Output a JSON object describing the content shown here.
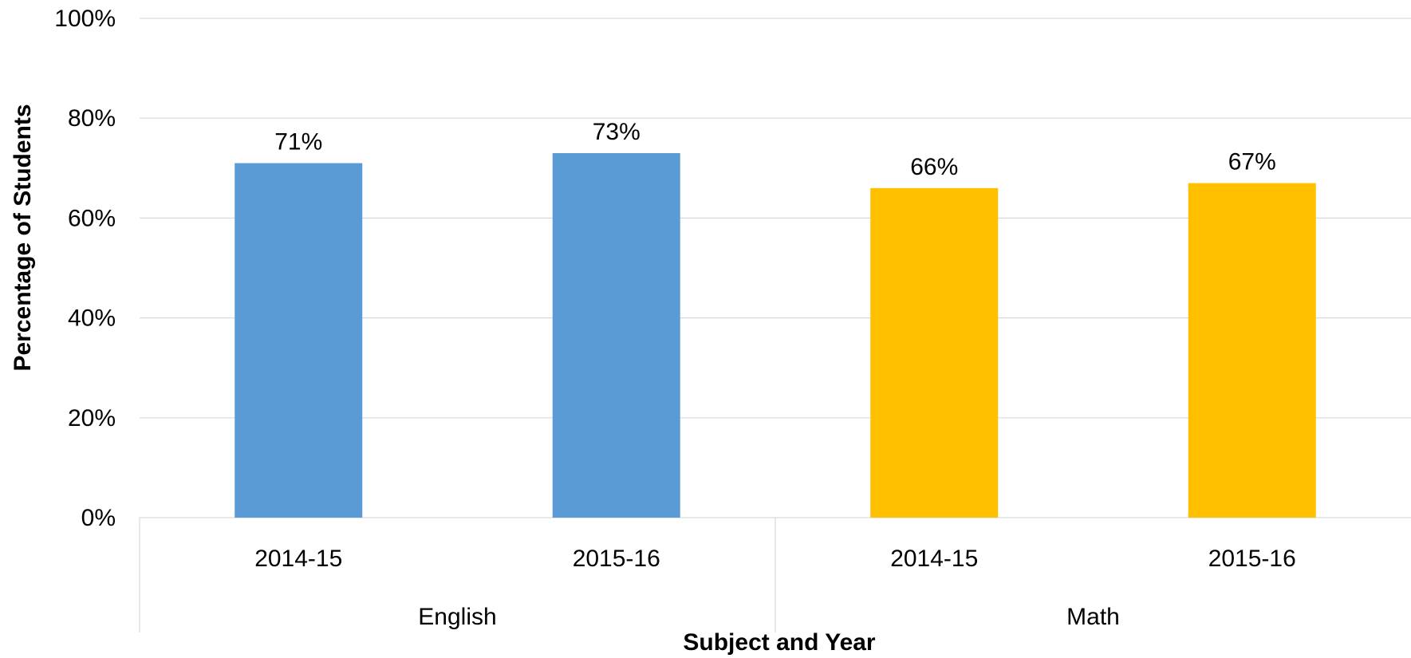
{
  "chart_data": {
    "type": "bar",
    "xlabel": "Subject and Year",
    "ylabel": "Percentage of Students",
    "ylim": [
      0,
      100
    ],
    "y_ticks": [
      0,
      20,
      40,
      60,
      80,
      100
    ],
    "y_tick_format": "percent",
    "grid": true,
    "legend": "none",
    "groups": [
      {
        "name": "English",
        "color": "#5b9bd5",
        "categories": [
          "2014-15",
          "2015-16"
        ],
        "values": [
          71,
          73
        ],
        "labels": [
          "71%",
          "73%"
        ]
      },
      {
        "name": "Math",
        "color": "#ffc000",
        "categories": [
          "2014-15",
          "2015-16"
        ],
        "values": [
          66,
          67
        ],
        "labels": [
          "66%",
          "67%"
        ]
      }
    ]
  }
}
